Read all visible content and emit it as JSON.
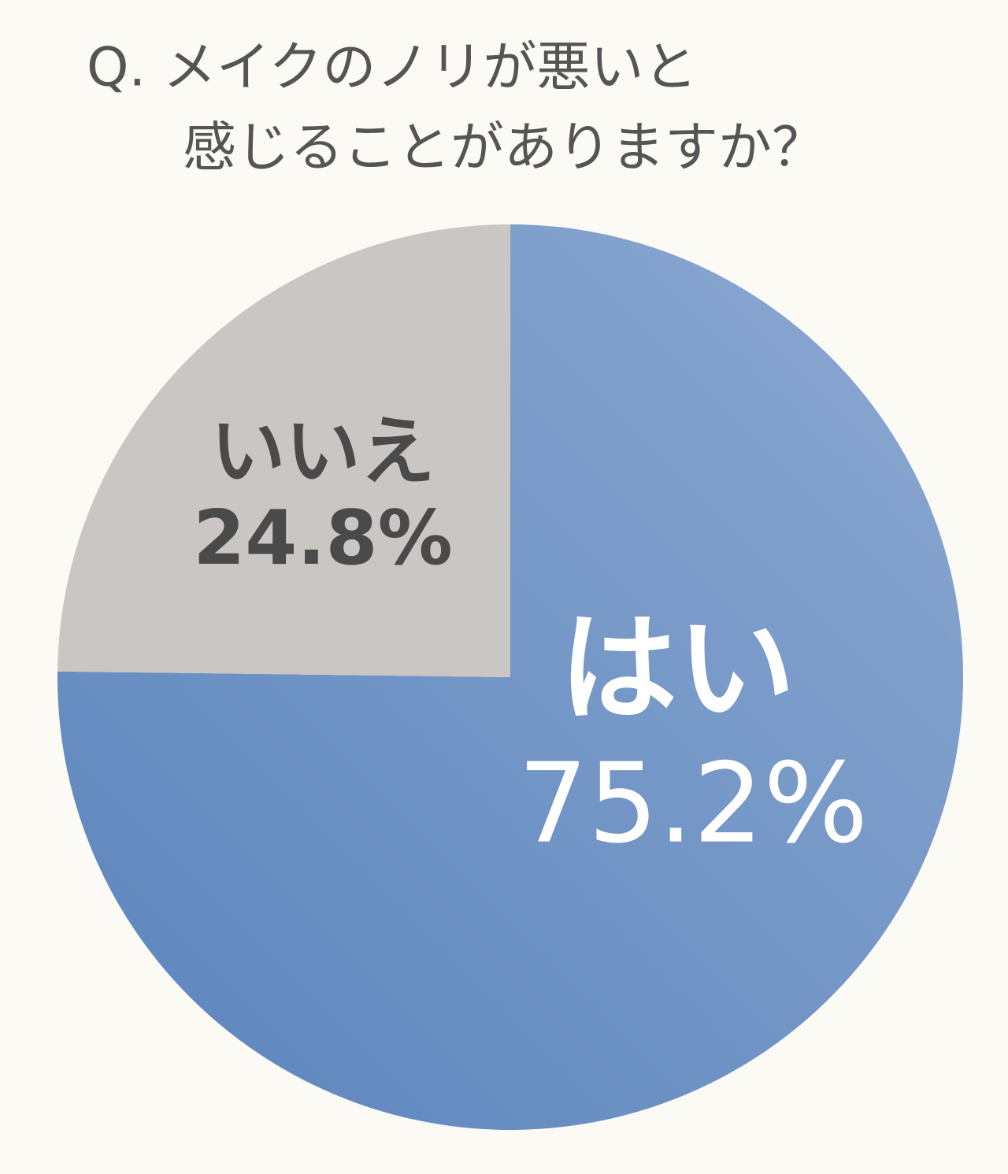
{
  "chart_data": {
    "type": "pie",
    "title": [
      "Q. メイクのノリが悪いと",
      "感じることがありますか？"
    ],
    "categories": [
      "はい",
      "いいえ"
    ],
    "values": [
      75.2,
      24.8
    ],
    "value_labels": [
      "75.2%",
      "24.8%"
    ],
    "colors": [
      "#5b84bd",
      "#c9c6c3"
    ]
  }
}
